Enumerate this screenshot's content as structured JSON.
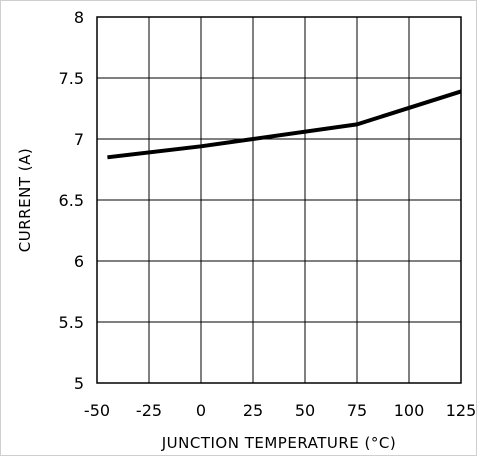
{
  "chart_data": {
    "type": "line",
    "title": "",
    "xlabel": "JUNCTION TEMPERATURE (°C)",
    "ylabel": "CURRENT (A)",
    "xlim": [
      -50,
      125
    ],
    "ylim": [
      5,
      8
    ],
    "x_ticks": [
      "-50",
      "-25",
      "0",
      "25",
      "50",
      "75",
      "100",
      "125"
    ],
    "y_ticks": [
      "5",
      "5.5",
      "6",
      "6.5",
      "7",
      "7.5",
      "8"
    ],
    "grid": true,
    "series": [
      {
        "x": [
          -45,
          0,
          25,
          75,
          125
        ],
        "y": [
          6.85,
          6.94,
          7.0,
          7.12,
          7.39
        ]
      }
    ],
    "colors": {
      "line": "#000000",
      "grid": "#000000",
      "frame": "#cfcfcf"
    }
  }
}
